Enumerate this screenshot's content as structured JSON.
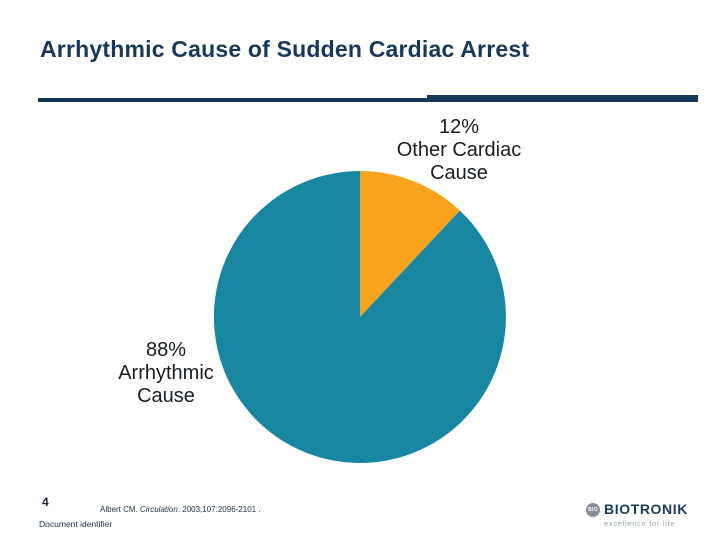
{
  "title": "Arrhythmic Cause of Sudden Cardiac Arrest",
  "chart_data": {
    "type": "pie",
    "title": "Arrhythmic Cause of Sudden Cardiac Arrest",
    "categories": [
      "Other Cardiac Cause",
      "Arrhythmic Cause"
    ],
    "values": [
      12,
      88
    ],
    "slices": [
      {
        "id": "other-cardiac-cause",
        "label": "Other Cardiac Cause",
        "value": 12,
        "color": "#f8a31c",
        "label_lines": [
          "12%",
          "Other Cardiac",
          "Cause"
        ]
      },
      {
        "id": "arrhythmic-cause",
        "label": "Arrhythmic Cause",
        "value": 88,
        "color": "#1787a1",
        "label_lines": [
          "88%",
          "Arrhythmic",
          "Cause"
        ]
      }
    ],
    "start_angle_deg": 0,
    "direction": "clockwise",
    "legend": "none",
    "label_color": "#181d26"
  },
  "footer": {
    "page_number": "4",
    "citation": {
      "author": "Albert CM. ",
      "journal": "Circulation",
      "rest": ". 2003;107:2096-2101 ."
    },
    "document_identifier": "Document identifier"
  },
  "logo": {
    "name": "BIOTRONIK",
    "tagline": "excellence for life",
    "globe_text": "BIO",
    "name_color": "#1b3b66",
    "tagline_color": "#9aa7b2"
  },
  "colors": {
    "title_navy": "#17375e",
    "rule_navy": "#16355c",
    "teal": "#1787a1",
    "orange": "#f8a31c"
  }
}
